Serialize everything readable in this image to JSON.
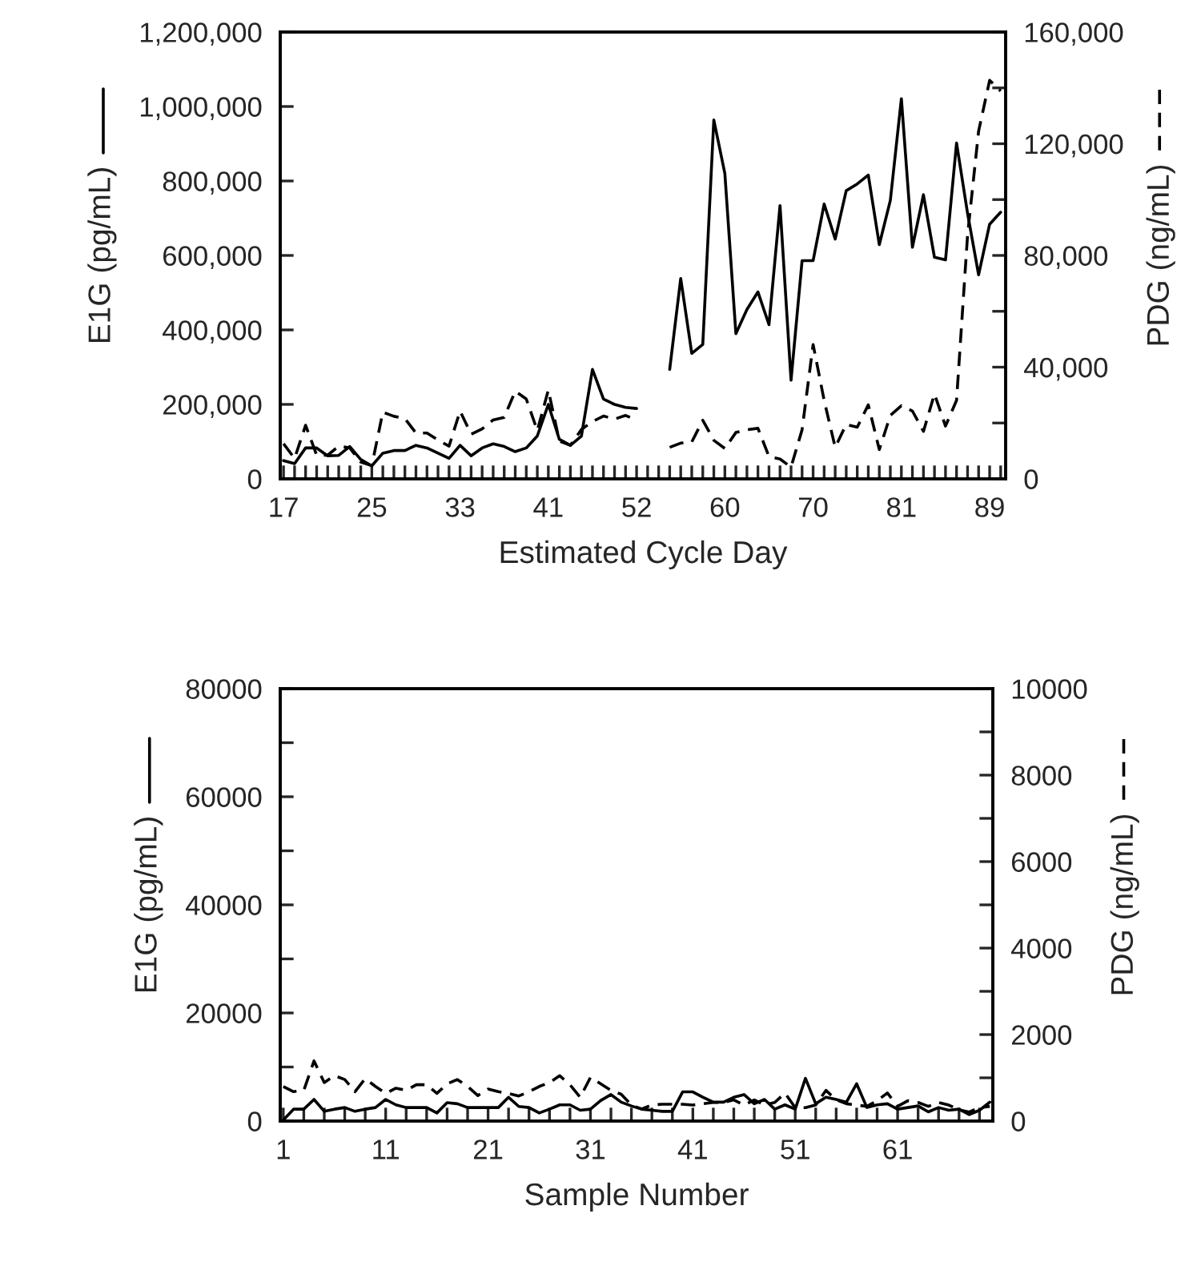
{
  "chart_data": [
    {
      "type": "line",
      "xlabel": "Estimated Cycle Day",
      "ylabel": "E1G (pg/mL)",
      "y2label": "PDG (ng/mL)",
      "categories": [
        "17",
        null,
        null,
        null,
        null,
        null,
        null,
        null,
        "25",
        null,
        null,
        null,
        null,
        null,
        null,
        null,
        "33",
        null,
        null,
        null,
        null,
        null,
        null,
        null,
        "41",
        null,
        null,
        null,
        null,
        null,
        null,
        null,
        "52",
        null,
        null,
        null,
        null,
        null,
        null,
        null,
        "60",
        null,
        null,
        null,
        null,
        null,
        null,
        null,
        "70",
        null,
        null,
        null,
        null,
        null,
        null,
        null,
        "81",
        null,
        null,
        null,
        null,
        null,
        null,
        null,
        "89",
        null
      ],
      "ylim": [
        0,
        1200000
      ],
      "yticks": [
        {
          "value": 0,
          "label": "0"
        },
        {
          "value": 200000,
          "label": "200,000"
        },
        {
          "value": 400000,
          "label": "400,000"
        },
        {
          "value": 600000,
          "label": "600,000"
        },
        {
          "value": 800000,
          "label": "800,000"
        },
        {
          "value": 1000000,
          "label": "1,000,000"
        },
        {
          "value": 1200000,
          "label": "1,200,000"
        }
      ],
      "y2lim": [
        0,
        160000
      ],
      "y2ticks": [
        {
          "value": 0,
          "label": "0"
        },
        {
          "value": 20000,
          "label": null
        },
        {
          "value": 40000,
          "label": "40,000"
        },
        {
          "value": 60000,
          "label": null
        },
        {
          "value": 80000,
          "label": "80,000"
        },
        {
          "value": 100000,
          "label": null
        },
        {
          "value": 120000,
          "label": "120,000"
        },
        {
          "value": 140000,
          "label": null
        },
        {
          "value": 160000,
          "label": "160,000"
        }
      ],
      "grid": false,
      "legend": false,
      "series": [
        {
          "color": "#000000",
          "line_style": "solid",
          "axis": "y",
          "values": [
            49000,
            41000,
            83000,
            83000,
            62000,
            63000,
            87000,
            52000,
            35000,
            69000,
            76000,
            76000,
            90000,
            83000,
            69000,
            55000,
            90000,
            62000,
            83000,
            94000,
            87000,
            73000,
            83000,
            115000,
            200000,
            106000,
            90000,
            115000,
            294000,
            214000,
            200000,
            192000,
            189000,
            null,
            null,
            294000,
            538000,
            337000,
            361000,
            964000,
            820000,
            390000,
            455000,
            502000,
            414000,
            734000,
            265000,
            586000,
            586000,
            738000,
            644000,
            774000,
            792000,
            816000,
            629000,
            748000,
            1021000,
            622000,
            763000,
            595000,
            588000,
            902000,
            713000,
            548000,
            684000,
            716000
          ]
        },
        {
          "color": "#000000",
          "line_style": "dashed",
          "axis": "y2",
          "values": [
            12600,
            7300,
            19200,
            8500,
            8500,
            11700,
            11100,
            6000,
            4700,
            23900,
            22400,
            21600,
            16400,
            16400,
            13900,
            11700,
            24300,
            16000,
            17900,
            21100,
            22000,
            31400,
            28600,
            17300,
            31800,
            13500,
            12000,
            17700,
            20500,
            22500,
            21400,
            22700,
            21000,
            null,
            null,
            11300,
            12800,
            13200,
            21000,
            13800,
            10900,
            16600,
            17600,
            18100,
            8000,
            7100,
            4200,
            17600,
            48100,
            28100,
            11300,
            19500,
            18500,
            26500,
            10500,
            22700,
            26200,
            24300,
            17000,
            30400,
            18900,
            28100,
            87300,
            124500,
            142700,
            138900
          ]
        }
      ]
    },
    {
      "type": "line",
      "xlabel": "Sample Number",
      "ylabel": "E1G (pg/mL)",
      "y2label": "PDG (ng/mL)",
      "x": [
        1,
        2,
        3,
        4,
        5,
        6,
        7,
        8,
        9,
        10,
        11,
        12,
        13,
        14,
        15,
        16,
        17,
        18,
        19,
        20,
        21,
        22,
        23,
        24,
        25,
        26,
        27,
        28,
        29,
        30,
        31,
        32,
        33,
        34,
        35,
        36,
        37,
        38,
        39,
        40,
        41,
        42,
        43,
        44,
        45,
        46,
        47,
        48,
        49,
        50,
        51,
        52,
        53,
        54,
        55,
        56,
        57,
        58,
        59,
        60,
        61,
        62,
        63,
        64,
        65,
        66,
        67,
        68,
        69,
        70
      ],
      "xlim": [
        0.7,
        70.3
      ],
      "xticks": [
        1,
        {
          "value": 3,
          "label": null
        },
        {
          "value": 5,
          "label": null
        },
        {
          "value": 7,
          "label": null
        },
        {
          "value": 9,
          "label": null
        },
        11,
        {
          "value": 13,
          "label": null
        },
        {
          "value": 15,
          "label": null
        },
        {
          "value": 17,
          "label": null
        },
        {
          "value": 19,
          "label": null
        },
        21,
        {
          "value": 23,
          "label": null
        },
        {
          "value": 25,
          "label": null
        },
        {
          "value": 27,
          "label": null
        },
        {
          "value": 29,
          "label": null
        },
        31,
        {
          "value": 33,
          "label": null
        },
        {
          "value": 35,
          "label": null
        },
        {
          "value": 37,
          "label": null
        },
        {
          "value": 39,
          "label": null
        },
        41,
        {
          "value": 43,
          "label": null
        },
        {
          "value": 45,
          "label": null
        },
        {
          "value": 47,
          "label": null
        },
        {
          "value": 49,
          "label": null
        },
        51,
        {
          "value": 53,
          "label": null
        },
        {
          "value": 55,
          "label": null
        },
        {
          "value": 57,
          "label": null
        },
        {
          "value": 59,
          "label": null
        },
        61,
        {
          "value": 63,
          "label": null
        },
        {
          "value": 65,
          "label": null
        },
        {
          "value": 67,
          "label": null
        },
        {
          "value": 69,
          "label": null
        }
      ],
      "ylim": [
        0,
        80000
      ],
      "yticks": [
        0,
        {
          "value": 10000,
          "label": null
        },
        20000,
        {
          "value": 30000,
          "label": null
        },
        40000,
        {
          "value": 50000,
          "label": null
        },
        60000,
        {
          "value": 70000,
          "label": null
        },
        80000
      ],
      "y2lim": [
        0,
        10000
      ],
      "y2ticks": [
        0,
        {
          "value": 1000,
          "label": null
        },
        2000,
        {
          "value": 3000,
          "label": null
        },
        4000,
        {
          "value": 5000,
          "label": null
        },
        6000,
        {
          "value": 7000,
          "label": null
        },
        8000,
        {
          "value": 9000,
          "label": null
        },
        10000
      ],
      "grid": false,
      "legend": false,
      "series": [
        {
          "color": "#000000",
          "line_style": "solid",
          "axis": "y",
          "values": [
            200,
            2200,
            2200,
            4000,
            1800,
            2200,
            2500,
            1800,
            2200,
            2500,
            4000,
            3000,
            2500,
            2500,
            2500,
            1500,
            3400,
            3200,
            2500,
            2500,
            2500,
            2500,
            4400,
            2700,
            2500,
            1500,
            2200,
            3000,
            3000,
            2000,
            2200,
            3800,
            4900,
            3500,
            2800,
            2200,
            2000,
            1800,
            1800,
            5400,
            5400,
            4400,
            3500,
            3500,
            4400,
            4900,
            3200,
            4000,
            2200,
            3000,
            2200,
            7900,
            3200,
            4400,
            4000,
            3500,
            6900,
            2500,
            3000,
            3200,
            2200,
            2500,
            2800,
            1700,
            2500,
            2000,
            2200,
            1200,
            2000,
            3500
          ]
        },
        {
          "color": "#000000",
          "line_style": "dashed",
          "axis": "y2",
          "values": [
            800,
            680,
            710,
            1390,
            890,
            1050,
            960,
            680,
            980,
            800,
            640,
            760,
            710,
            840,
            840,
            640,
            860,
            960,
            800,
            590,
            740,
            680,
            640,
            580,
            680,
            800,
            890,
            1050,
            840,
            550,
            1010,
            860,
            710,
            620,
            370,
            280,
            370,
            390,
            390,
            390,
            370,
            400,
            430,
            430,
            490,
            370,
            490,
            370,
            430,
            650,
            310,
            310,
            370,
            710,
            490,
            400,
            370,
            340,
            470,
            650,
            340,
            470,
            430,
            340,
            430,
            370,
            260,
            210,
            310,
            340
          ]
        }
      ]
    }
  ]
}
